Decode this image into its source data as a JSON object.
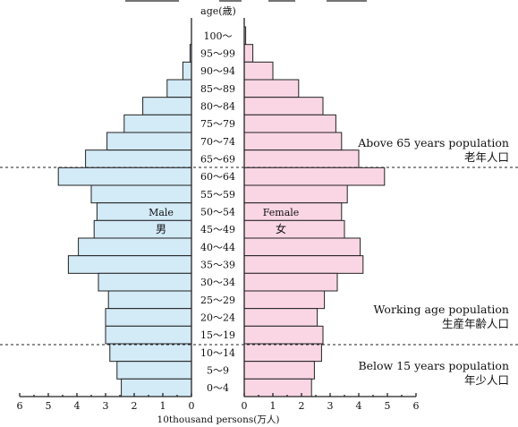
{
  "chart_data": {
    "type": "bar",
    "title_partial": "",
    "y_axis_label": "age(歳)",
    "x_axis_label": "10thousand persons(万人)",
    "x_ticks_left": [
      "6",
      "5",
      "4",
      "3",
      "2",
      "1",
      "0"
    ],
    "x_ticks_right": [
      "0",
      "1",
      "2",
      "3",
      "4",
      "5",
      "6"
    ],
    "xlim": [
      0,
      6
    ],
    "categories": [
      "100～",
      "95～99",
      "90～94",
      "85～89",
      "80～84",
      "75～79",
      "70～74",
      "65～69",
      "60～64",
      "55～59",
      "50～54",
      "45～49",
      "40～44",
      "35～39",
      "30～34",
      "25～29",
      "20～24",
      "15～19",
      "10～14",
      "5～9",
      "0～4"
    ],
    "series": [
      {
        "name_en": "Male",
        "name_jp": "男",
        "side": "left",
        "values": [
          0.0,
          0.05,
          0.3,
          0.85,
          1.7,
          2.35,
          2.95,
          3.7,
          4.65,
          3.5,
          3.3,
          3.4,
          3.95,
          4.3,
          3.25,
          2.9,
          3.0,
          3.0,
          2.85,
          2.6,
          2.45
        ]
      },
      {
        "name_en": "Female",
        "name_jp": "女",
        "side": "right",
        "values": [
          0.05,
          0.3,
          1.0,
          1.9,
          2.75,
          3.2,
          3.4,
          4.0,
          4.9,
          3.6,
          3.4,
          3.5,
          4.05,
          4.15,
          3.25,
          2.8,
          2.55,
          2.75,
          2.7,
          2.45,
          2.35
        ]
      }
    ],
    "annotations": [
      {
        "en": "Above 65 years population",
        "jp": "老年人口"
      },
      {
        "en": "Working age population",
        "jp": "生産年齢人口"
      },
      {
        "en": "Below 15 years population",
        "jp": "年少人口"
      }
    ]
  },
  "colors": {
    "male": "#d3eaf7",
    "female": "#fad6e4",
    "outline": "#222222"
  }
}
